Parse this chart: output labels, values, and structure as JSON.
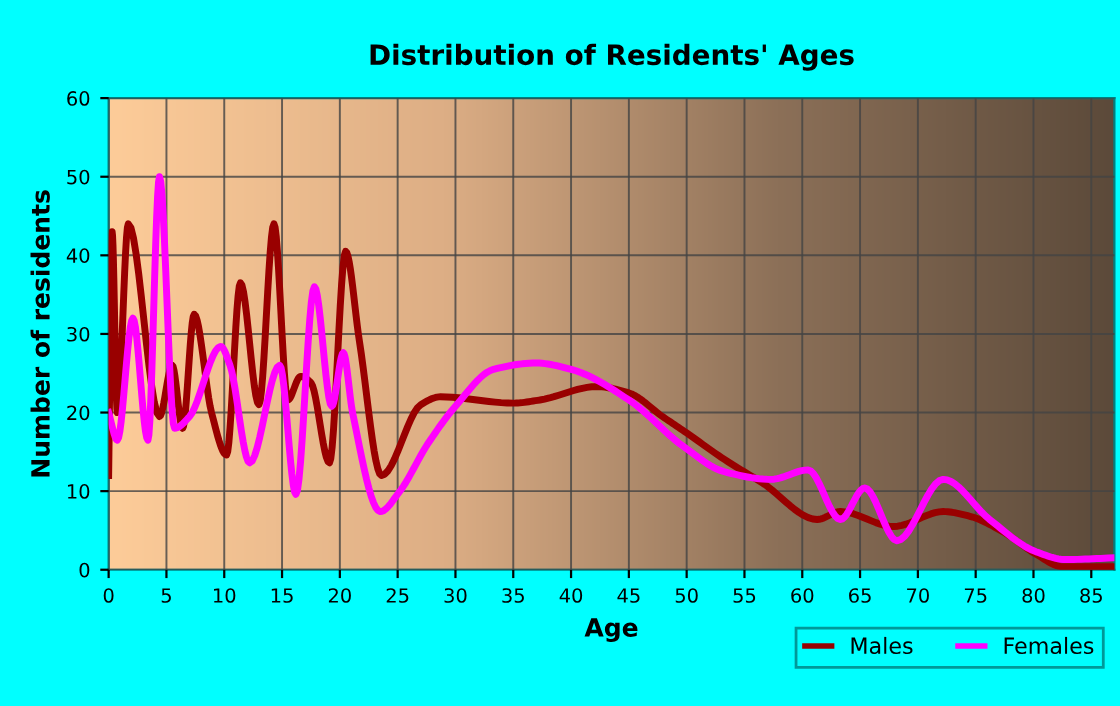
{
  "chart_data": {
    "type": "line",
    "title": "Distribution of Residents' Ages",
    "xlabel": "Age",
    "ylabel": "Number of residents",
    "xlim": [
      0,
      87
    ],
    "xticks": [
      0,
      5,
      10,
      15,
      20,
      25,
      30,
      35,
      40,
      45,
      50,
      55,
      60,
      65,
      70,
      75,
      80,
      85
    ],
    "ylim": [
      0,
      60
    ],
    "yticks": [
      0,
      10,
      20,
      30,
      40,
      50,
      60
    ],
    "grid": true,
    "legend": "bottom right",
    "marker": "none",
    "line_style": "solid",
    "series": [
      {
        "name": "Males",
        "color": "#990000",
        "x": [
          0,
          0.3,
          0.75,
          1.7,
          4.4,
          5.5,
          6.4,
          7.4,
          8.9,
          10.2,
          11.4,
          13,
          14.3,
          15.5,
          16.6,
          17.5,
          19.1,
          20.5,
          21.7,
          23.6,
          27,
          28.7,
          35,
          37.3,
          42.2,
          45,
          47.9,
          50,
          53.3,
          56.6,
          61.3,
          63.3,
          67.9,
          72.2,
          74.5,
          77.4,
          80.2,
          82.5,
          86.8
        ],
        "values": [
          12,
          43,
          20,
          44,
          19.5,
          26,
          18,
          32.5,
          20,
          14.6,
          36.5,
          21,
          44,
          21.6,
          24.6,
          23.8,
          13.6,
          40.5,
          29,
          12,
          21,
          22,
          21.2,
          21.6,
          23.3,
          22.5,
          19.5,
          17.4,
          14,
          11,
          6.4,
          7.4,
          5.5,
          7.4,
          6.8,
          4.8,
          2,
          0.4,
          0.4
        ]
      },
      {
        "name": "Females",
        "color": "#ff00ff",
        "x": [
          0,
          0.75,
          2.1,
          3.4,
          4.4,
          5.7,
          7,
          9.7,
          10.5,
          12.2,
          14.8,
          16.2,
          17.8,
          19.3,
          20.3,
          21.1,
          23.5,
          25.1,
          27.6,
          30,
          33.3,
          37,
          40,
          45,
          49.7,
          53.2,
          57.3,
          60.5,
          63.3,
          65.4,
          68.2,
          72.2,
          76.2,
          80.2,
          82.8,
          86.8
        ],
        "values": [
          20,
          16.5,
          32,
          16.5,
          50,
          18,
          19.5,
          28.4,
          26,
          13.6,
          26,
          9.6,
          36,
          20.8,
          27.6,
          20,
          7.4,
          9.8,
          16,
          20.8,
          25.5,
          26.3,
          25.5,
          21.6,
          15.7,
          12.5,
          11.5,
          12.7,
          6.4,
          10.4,
          3.7,
          11.5,
          6.4,
          2.3,
          1.3,
          1.5
        ]
      }
    ]
  }
}
